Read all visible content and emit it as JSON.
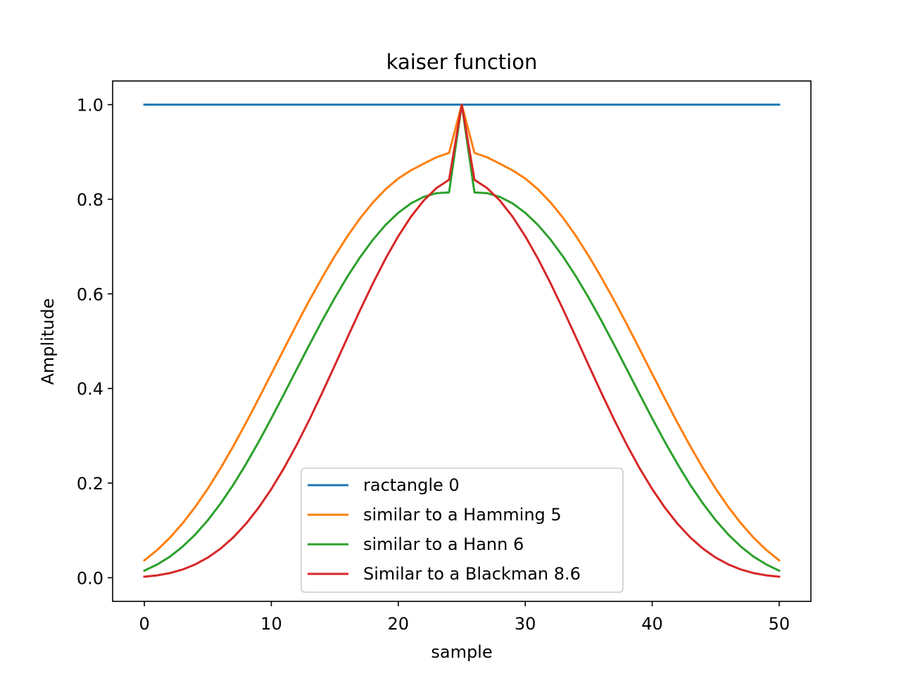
{
  "chart_data": {
    "type": "line",
    "title": "kaiser function",
    "xlabel": "sample",
    "ylabel": "Amplitude",
    "xlim": [
      -2.5,
      52.5
    ],
    "ylim": [
      -0.05,
      1.05
    ],
    "xticks": [
      0,
      10,
      20,
      30,
      40,
      50
    ],
    "yticks": [
      0.0,
      0.2,
      0.4,
      0.6,
      0.8,
      1.0
    ],
    "xtick_labels": [
      "0",
      "10",
      "20",
      "30",
      "40",
      "50"
    ],
    "ytick_labels": [
      "0.0",
      "0.2",
      "0.4",
      "0.6",
      "0.8",
      "1.0"
    ],
    "grid": false,
    "legend_position": "lower center",
    "x": [
      0,
      1,
      2,
      3,
      4,
      5,
      6,
      7,
      8,
      9,
      10,
      11,
      12,
      13,
      14,
      15,
      16,
      17,
      18,
      19,
      20,
      21,
      22,
      23,
      24,
      25,
      26,
      27,
      28,
      29,
      30,
      31,
      32,
      33,
      34,
      35,
      36,
      37,
      38,
      39,
      40,
      41,
      42,
      43,
      44,
      45,
      46,
      47,
      48,
      49,
      50
    ],
    "series": [
      {
        "name": "ractangle 0",
        "beta": 0,
        "color": "#1f77b4",
        "values": [
          1,
          1,
          1,
          1,
          1,
          1,
          1,
          1,
          1,
          1,
          1,
          1,
          1,
          1,
          1,
          1,
          1,
          1,
          1,
          1,
          1,
          1,
          1,
          1,
          1,
          1,
          1,
          1,
          1,
          1,
          1,
          1,
          1,
          1,
          1,
          1,
          1,
          1,
          1,
          1,
          1,
          1,
          1,
          1,
          1,
          1,
          1,
          1,
          1,
          1,
          1
        ]
      },
      {
        "name": "similar to a Hamming 5",
        "beta": 5,
        "color": "#ff7f0e",
        "values": [
          0.0367,
          0.0583,
          0.0842,
          0.1146,
          0.1494,
          0.1883,
          0.2314,
          0.2778,
          0.327,
          0.3784,
          0.4308,
          0.4836,
          0.5358,
          0.5864,
          0.6344,
          0.68,
          0.7221,
          0.76,
          0.7931,
          0.8211,
          0.8439,
          0.8611,
          0.8752,
          0.8887,
          0.898,
          1.0,
          0.898,
          0.8887,
          0.8752,
          0.8611,
          0.8439,
          0.8211,
          0.7931,
          0.76,
          0.7221,
          0.68,
          0.6344,
          0.5864,
          0.5358,
          0.4836,
          0.4308,
          0.3784,
          0.327,
          0.2778,
          0.2314,
          0.1883,
          0.1494,
          0.1146,
          0.0842,
          0.0583,
          0.0367
        ]
      },
      {
        "name": "similar to a Hann 6",
        "beta": 6,
        "color": "#2ca02c",
        "values": [
          0.0149,
          0.0278,
          0.0442,
          0.0654,
          0.091,
          0.1215,
          0.1567,
          0.1962,
          0.24,
          0.287,
          0.3368,
          0.3882,
          0.4405,
          0.4925,
          0.5431,
          0.5915,
          0.6367,
          0.6779,
          0.7144,
          0.7457,
          0.7714,
          0.7913,
          0.8051,
          0.8128,
          0.8145,
          1.0,
          0.8145,
          0.8128,
          0.8051,
          0.7913,
          0.7714,
          0.7457,
          0.7144,
          0.6779,
          0.6367,
          0.5915,
          0.5431,
          0.4925,
          0.4405,
          0.3882,
          0.3368,
          0.287,
          0.24,
          0.1962,
          0.1567,
          0.1215,
          0.091,
          0.0654,
          0.0442,
          0.0278,
          0.0149
        ]
      },
      {
        "name": "Similar to a Blackman 8.6",
        "beta": 8.6,
        "color": "#d62728",
        "values": [
          0.0021,
          0.0049,
          0.0097,
          0.0172,
          0.028,
          0.0425,
          0.0614,
          0.0851,
          0.1139,
          0.148,
          0.1874,
          0.2318,
          0.281,
          0.3342,
          0.3905,
          0.4488,
          0.5078,
          0.5661,
          0.6221,
          0.6745,
          0.7219,
          0.7632,
          0.7973,
          0.8235,
          0.8411,
          1.0,
          0.8411,
          0.8235,
          0.7973,
          0.7632,
          0.7219,
          0.6745,
          0.6221,
          0.5661,
          0.5078,
          0.4488,
          0.3905,
          0.3342,
          0.281,
          0.2318,
          0.1874,
          0.148,
          0.1139,
          0.0851,
          0.0614,
          0.0425,
          0.028,
          0.0172,
          0.0097,
          0.0049,
          0.0021
        ]
      }
    ]
  }
}
